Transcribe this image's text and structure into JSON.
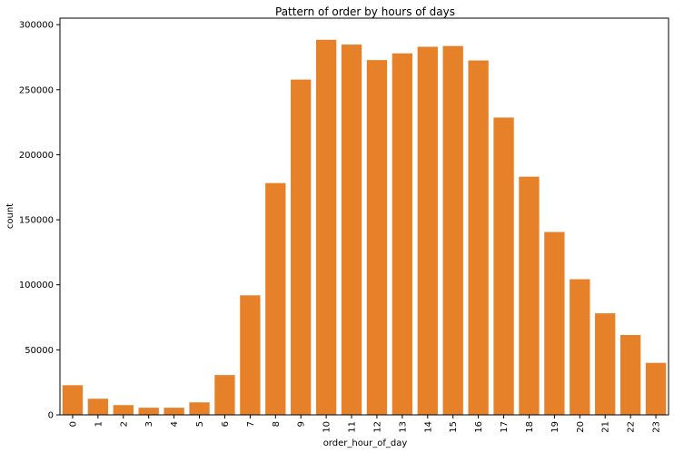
{
  "chart_data": {
    "type": "bar",
    "title": "Pattern of order by hours of days",
    "xlabel": "order_hour_of_day",
    "ylabel": "count",
    "categories": [
      "0",
      "1",
      "2",
      "3",
      "4",
      "5",
      "6",
      "7",
      "8",
      "9",
      "10",
      "11",
      "12",
      "13",
      "14",
      "15",
      "16",
      "17",
      "18",
      "19",
      "20",
      "21",
      "22",
      "23"
    ],
    "values": [
      22800,
      12400,
      7500,
      5500,
      5500,
      9600,
      30600,
      91900,
      178200,
      257800,
      288400,
      284700,
      272800,
      277900,
      283000,
      283600,
      272500,
      228600,
      183100,
      140600,
      104300,
      78100,
      61400,
      40000
    ],
    "ylim": [
      0,
      305000
    ],
    "yticks": [
      0,
      50000,
      100000,
      150000,
      200000,
      250000,
      300000
    ],
    "bar_color": "#e6812a",
    "grid": false
  }
}
